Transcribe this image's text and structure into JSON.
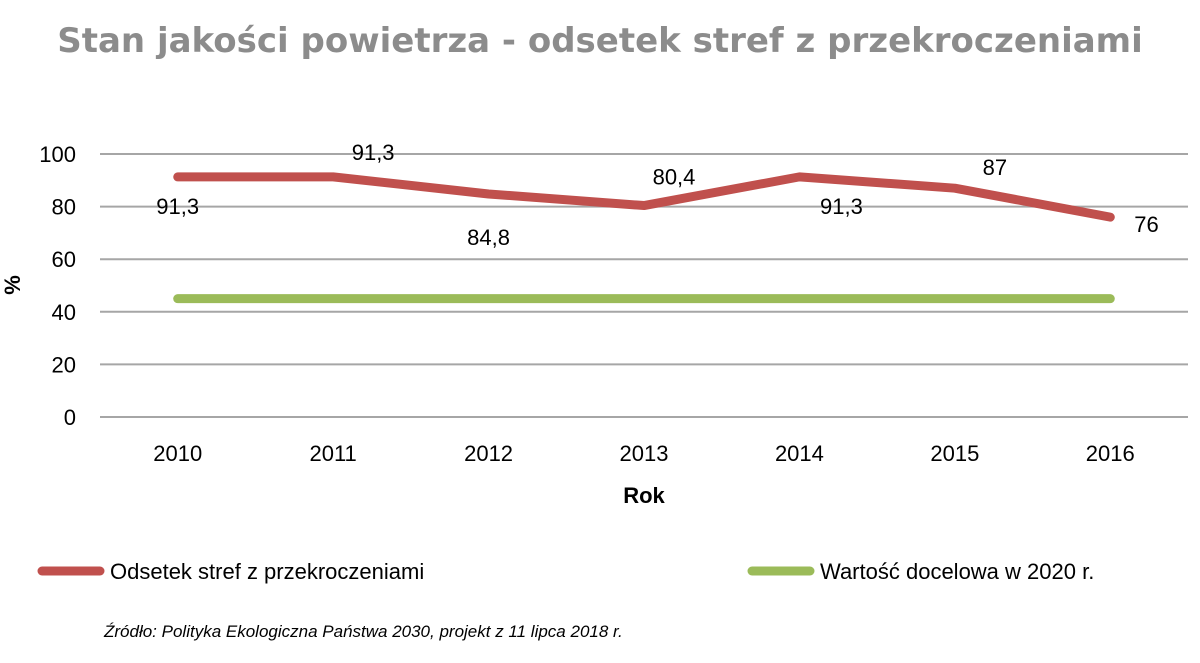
{
  "chart_data": {
    "type": "line",
    "title": "Stan jakości powietrza - odsetek stref z przekroczeniami",
    "xlabel": "Rok",
    "ylabel": "%",
    "categories": [
      "2010",
      "2011",
      "2012",
      "2013",
      "2014",
      "2015",
      "2016"
    ],
    "ylim": [
      0,
      100
    ],
    "yticks": [
      "0",
      "20",
      "40",
      "60",
      "80",
      "100"
    ],
    "grid": true,
    "legend_position": "bottom",
    "series": [
      {
        "name": "Odsetek stref z przekroczeniami",
        "color": "#c0504d",
        "values": [
          91.3,
          91.3,
          84.8,
          80.4,
          91.3,
          87,
          76
        ],
        "labels": [
          "91,3",
          "91,3",
          "84,8",
          "80,4",
          "91,3",
          "87",
          "76"
        ]
      },
      {
        "name": "Wartość docelowa w 2020 r.",
        "color": "#9bbb59",
        "values": [
          45,
          45,
          45,
          45,
          45,
          45,
          45
        ]
      }
    ],
    "source": "Źródło: Polityka Ekologiczna Państwa 2030, projekt z 11 lipca 2018 r."
  }
}
